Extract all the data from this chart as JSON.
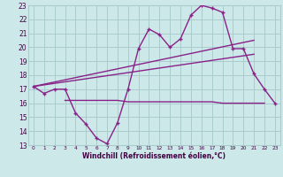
{
  "xlabel": "Windchill (Refroidissement éolien,°C)",
  "bg_color": "#cce8e8",
  "grid_color": "#aacccc",
  "line_color": "#882288",
  "x_data": [
    0,
    1,
    2,
    3,
    4,
    5,
    6,
    7,
    8,
    9,
    10,
    11,
    12,
    13,
    14,
    15,
    16,
    17,
    18,
    19,
    20,
    21,
    22,
    23
  ],
  "main_line": [
    17.2,
    16.7,
    17.0,
    17.0,
    15.3,
    14.5,
    13.5,
    13.1,
    14.6,
    17.0,
    19.9,
    21.3,
    20.9,
    20.0,
    20.6,
    22.3,
    23.0,
    22.8,
    22.5,
    19.9,
    19.9,
    18.1,
    17.0,
    16.0
  ],
  "flat_line_x": [
    3,
    4,
    5,
    6,
    7,
    8,
    9,
    10,
    11,
    12,
    13,
    14,
    15,
    16,
    17,
    18,
    19,
    20,
    21,
    22
  ],
  "flat_line_y": [
    16.2,
    16.2,
    16.2,
    16.2,
    16.2,
    16.2,
    16.1,
    16.1,
    16.1,
    16.1,
    16.1,
    16.1,
    16.1,
    16.1,
    16.1,
    16.0,
    16.0,
    16.0,
    16.0,
    16.0
  ],
  "trend1_x": [
    0,
    21
  ],
  "trend1_y": [
    17.2,
    19.5
  ],
  "trend2_x": [
    0,
    21
  ],
  "trend2_y": [
    17.2,
    20.5
  ],
  "ylim": [
    13,
    23
  ],
  "xlim": [
    -0.5,
    23.5
  ],
  "yticks": [
    13,
    14,
    15,
    16,
    17,
    18,
    19,
    20,
    21,
    22,
    23
  ],
  "xticks": [
    0,
    1,
    2,
    3,
    4,
    5,
    6,
    7,
    8,
    9,
    10,
    11,
    12,
    13,
    14,
    15,
    16,
    17,
    18,
    19,
    20,
    21,
    22,
    23
  ]
}
